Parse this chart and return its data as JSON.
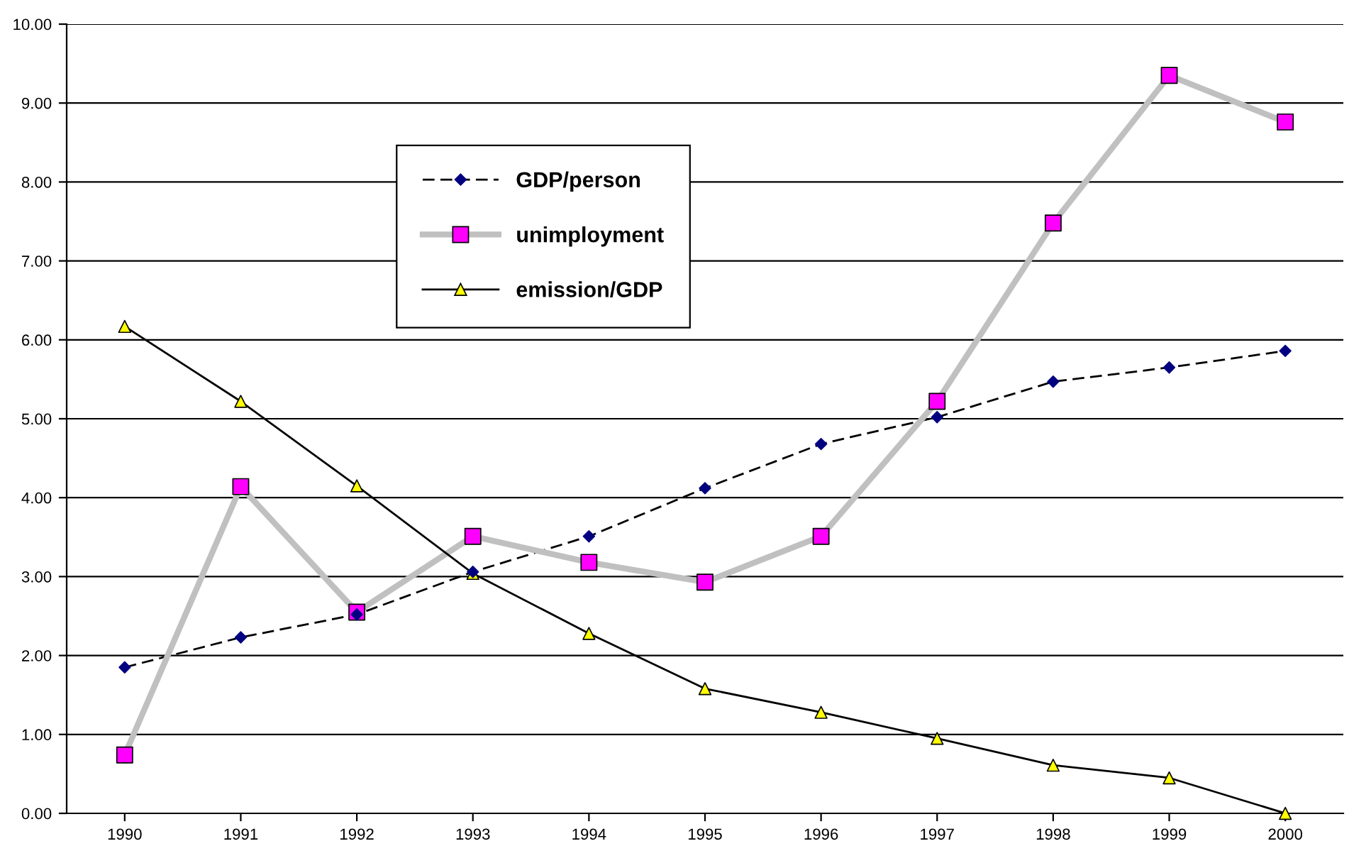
{
  "chart_data": {
    "type": "line",
    "categories": [
      "1990",
      "1991",
      "1992",
      "1993",
      "1994",
      "1995",
      "1996",
      "1997",
      "1998",
      "1999",
      "2000"
    ],
    "series": [
      {
        "name": "GDP/person",
        "color": "#000000",
        "colors": [
          "#000080",
          "#000080",
          "#000080",
          "#000080",
          "#000080",
          "#000080",
          "#000080",
          "#000080",
          "#000080",
          "#000080",
          "#000080"
        ],
        "marker": "diamond",
        "line_style": "dashed",
        "values": [
          1.85,
          2.23,
          2.52,
          3.06,
          3.51,
          4.12,
          4.68,
          5.02,
          5.47,
          5.65,
          5.86
        ]
      },
      {
        "name": "unimployment",
        "color": "#c0c0c0",
        "colors": [
          "#ff00ff",
          "#ff00ff",
          "#ff00ff",
          "#ff00ff",
          "#ff00ff",
          "#ff00ff",
          "#ff00ff",
          "#ff00ff",
          "#ff00ff",
          "#ff00ff",
          "#ff00ff"
        ],
        "marker": "square",
        "line_style": "solid",
        "values": [
          0.74,
          4.14,
          2.55,
          3.51,
          3.18,
          2.93,
          3.51,
          5.22,
          7.48,
          9.35,
          8.76
        ]
      },
      {
        "name": "emission/GDP",
        "color": "#000000",
        "colors": [
          "#ffff00",
          "#ffff00",
          "#ffff00",
          "#ffff00",
          "#ffff00",
          "#ffff00",
          "#ffff00",
          "#ffff00",
          "#ffff00",
          "#ffff00",
          "#ffff00"
        ],
        "marker": "triangle",
        "line_style": "solid",
        "values": [
          6.17,
          5.22,
          4.15,
          3.04,
          2.28,
          1.58,
          1.28,
          0.95,
          0.61,
          0.45,
          0.0
        ]
      }
    ],
    "ylim": [
      0,
      10
    ],
    "yticks": [
      {
        "value": 0,
        "label": "0.00"
      },
      {
        "value": 1,
        "label": "1.00"
      },
      {
        "value": 2,
        "label": "2.00"
      },
      {
        "value": 3,
        "label": "3.00"
      },
      {
        "value": 4,
        "label": "4.00"
      },
      {
        "value": 5,
        "label": "5.00"
      },
      {
        "value": 6,
        "label": "6.00"
      },
      {
        "value": 7,
        "label": "7.00"
      },
      {
        "value": 8,
        "label": "8.00"
      },
      {
        "value": 9,
        "label": "9.00"
      },
      {
        "value": 10,
        "label": "10.00"
      }
    ],
    "grid": "y",
    "legend": "top left"
  }
}
